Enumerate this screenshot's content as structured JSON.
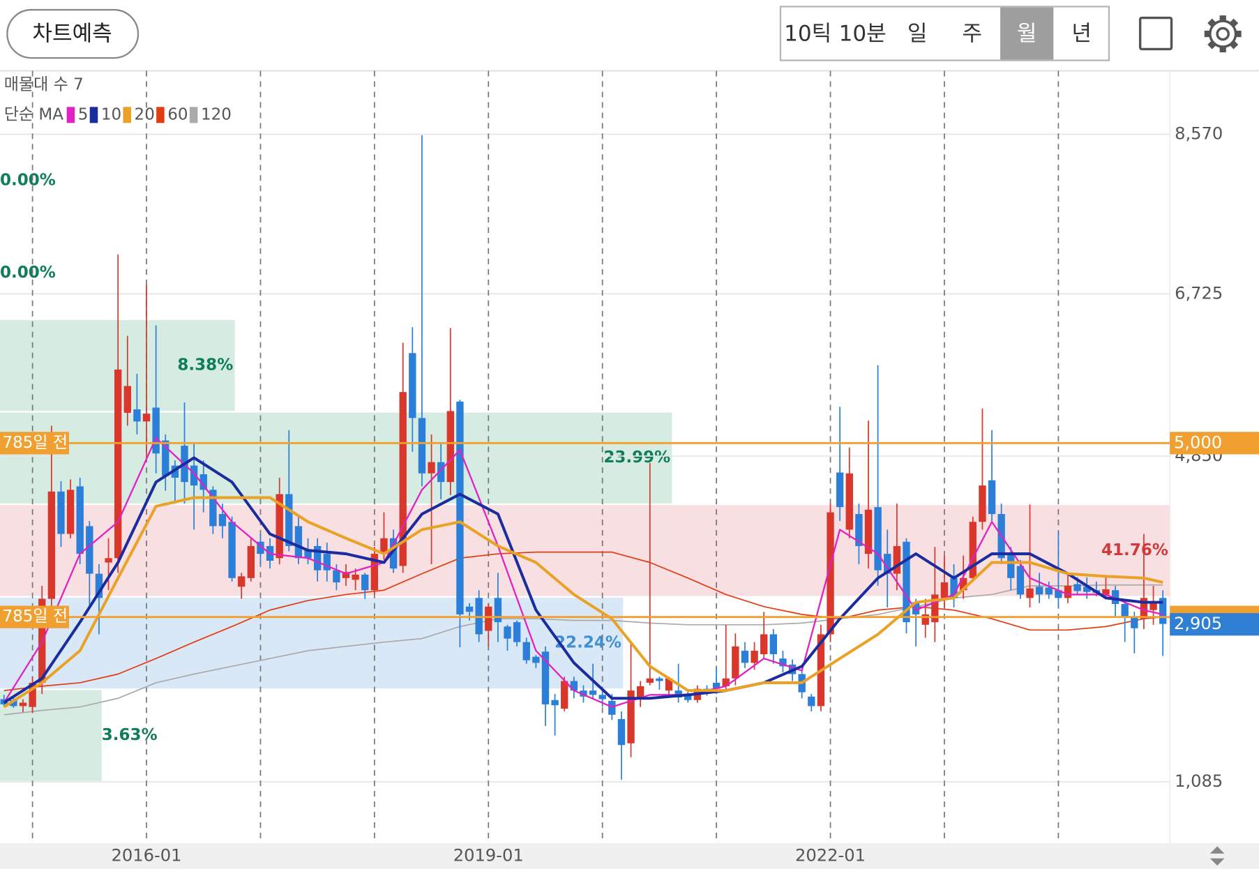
{
  "toolbar": {
    "predict_button": "차트예측",
    "periods": [
      "10틱",
      "10분",
      "일",
      "주",
      "월",
      "년"
    ],
    "selected_period": 4
  },
  "chart_data": {
    "type": "candlestick",
    "volume_profile_label": "매물대 수 7",
    "ma_label": "단순 MA",
    "categories": [
      "2014-10",
      "2014-11",
      "2014-12",
      "2015-01",
      "2015-02",
      "2015-03",
      "2015-04",
      "2015-05",
      "2015-06",
      "2015-07",
      "2015-08",
      "2015-09",
      "2015-10",
      "2015-11",
      "2015-12",
      "2016-01",
      "2016-02",
      "2016-03",
      "2016-04",
      "2016-05",
      "2016-06",
      "2016-07",
      "2016-08",
      "2016-09",
      "2016-10",
      "2016-11",
      "2016-12",
      "2017-01",
      "2017-02",
      "2017-03",
      "2017-04",
      "2017-05",
      "2017-06",
      "2017-07",
      "2017-08",
      "2017-09",
      "2017-10",
      "2017-11",
      "2017-12",
      "2018-01",
      "2018-02",
      "2018-03",
      "2018-04",
      "2018-05",
      "2018-06",
      "2018-07",
      "2018-08",
      "2018-09",
      "2018-10",
      "2018-11",
      "2018-12",
      "2019-01",
      "2019-02",
      "2019-03",
      "2019-04",
      "2019-05",
      "2019-06",
      "2019-07",
      "2019-08",
      "2019-09",
      "2019-10",
      "2019-11",
      "2019-12",
      "2020-01",
      "2020-02",
      "2020-03",
      "2020-04",
      "2020-05",
      "2020-06",
      "2020-07",
      "2020-08",
      "2020-09",
      "2020-10",
      "2020-11",
      "2020-12",
      "2021-01",
      "2021-02",
      "2021-03",
      "2021-04",
      "2021-05",
      "2021-06",
      "2021-07",
      "2021-08",
      "2021-09",
      "2021-10",
      "2021-11",
      "2021-12",
      "2022-01",
      "2022-02",
      "2022-03",
      "2022-04",
      "2022-05",
      "2022-06",
      "2022-07",
      "2022-08",
      "2022-09",
      "2022-10",
      "2022-11",
      "2022-12",
      "2023-01",
      "2023-02",
      "2023-03",
      "2023-04",
      "2023-05",
      "2023-06",
      "2023-07",
      "2023-08",
      "2023-09",
      "2023-10",
      "2023-11",
      "2023-12",
      "2024-01",
      "2024-02",
      "2024-03",
      "2024-04",
      "2024-05",
      "2024-06",
      "2024-07",
      "2024-08",
      "2024-09",
      "2024-10",
      "2024-11",
      "2024-12"
    ],
    "open": [
      2040,
      2030,
      1960,
      1950,
      2230,
      3200,
      4440,
      3950,
      4500,
      4040,
      3490,
      3620,
      3670,
      5350,
      5390,
      5250,
      5410,
      5030,
      4740,
      4970,
      4740,
      4640,
      4460,
      4180,
      4090,
      3340,
      3440,
      3860,
      3810,
      3670,
      4410,
      4040,
      3760,
      3810,
      3720,
      3530,
      3440,
      3420,
      3480,
      3300,
      3720,
      3900,
      3580,
      6040,
      5290,
      4650,
      4780,
      4550,
      5480,
      3110,
      3210,
      2830,
      3210,
      2880,
      2930,
      2700,
      2530,
      2590,
      2030,
      1930,
      2250,
      2140,
      2140,
      2090,
      2020,
      1810,
      1530,
      2050,
      2230,
      2280,
      2140,
      2140,
      2090,
      2030,
      2160,
      2230,
      2190,
      2280,
      2600,
      2460,
      2560,
      2790,
      2510,
      2440,
      2330,
      2070,
      1960,
      2790,
      4660,
      4000,
      4180,
      3720,
      4260,
      3720,
      3490,
      3860,
      3160,
      2900,
      2930,
      3210,
      3440,
      3300,
      3440,
      4090,
      4570,
      4180,
      3720,
      3580,
      3210,
      3340,
      3330,
      3300,
      3210,
      3370,
      3340,
      3300,
      3250,
      3300,
      3140,
      2990,
      2970,
      3070,
      3210
    ],
    "high": [
      2090,
      2060,
      2040,
      2300,
      3350,
      5200,
      4560,
      4580,
      4600,
      4100,
      3600,
      3900,
      7180,
      6240,
      5800,
      6830,
      6360,
      5100,
      4800,
      5470,
      5000,
      4800,
      4500,
      4300,
      4150,
      3500,
      3900,
      3950,
      3900,
      4600,
      5150,
      4150,
      3900,
      3900,
      3850,
      3600,
      3600,
      3550,
      3500,
      3800,
      4200,
      4000,
      6160,
      6340,
      8560,
      5100,
      5000,
      6330,
      5500,
      3150,
      3300,
      3150,
      3500,
      2900,
      2950,
      2750,
      2550,
      2650,
      2100,
      2300,
      2300,
      2200,
      2450,
      2150,
      2100,
      1900,
      2700,
      2250,
      4770,
      2300,
      2300,
      2450,
      2150,
      2200,
      2200,
      2400,
      2900,
      2800,
      2700,
      2700,
      3050,
      2850,
      2600,
      2500,
      2400,
      2100,
      2900,
      4300,
      5420,
      4950,
      4300,
      5260,
      5900,
      4000,
      4300,
      3900,
      3200,
      3200,
      3800,
      3700,
      3600,
      3700,
      4150,
      5400,
      5150,
      4300,
      3800,
      3650,
      4290,
      3500,
      3400,
      3980,
      3500,
      3450,
      3450,
      3400,
      3450,
      3350,
      3200,
      3050,
      3950,
      3350,
      3300
    ],
    "low": [
      1950,
      1940,
      1890,
      1880,
      2100,
      3100,
      3800,
      3900,
      3600,
      3100,
      2790,
      3300,
      3500,
      5200,
      5100,
      4800,
      4650,
      4450,
      4300,
      4300,
      4000,
      4200,
      3950,
      3900,
      3400,
      3200,
      3400,
      3600,
      3550,
      3600,
      3750,
      3600,
      3600,
      3400,
      3400,
      3300,
      3350,
      3300,
      3200,
      3250,
      3650,
      3500,
      3500,
      4900,
      4500,
      3600,
      4350,
      4400,
      2640,
      2950,
      2700,
      2650,
      2700,
      2600,
      2650,
      2450,
      2400,
      1730,
      1620,
      1900,
      2050,
      2000,
      2050,
      1950,
      1800,
      1110,
      1370,
      1950,
      2200,
      2150,
      2100,
      2000,
      2000,
      2000,
      2080,
      2100,
      2150,
      2200,
      2400,
      2380,
      2500,
      2450,
      2350,
      2250,
      2050,
      1900,
      1900,
      2700,
      4100,
      3900,
      3600,
      3550,
      3350,
      3100,
      3300,
      2800,
      2650,
      2750,
      2700,
      3100,
      3100,
      3200,
      3400,
      4000,
      4100,
      3600,
      3300,
      3200,
      3100,
      3150,
      3200,
      3100,
      3150,
      3250,
      3200,
      3230,
      3200,
      3000,
      2700,
      2570,
      2850,
      2900,
      2540
    ],
    "close": [
      1980,
      1960,
      2000,
      2230,
      3200,
      4440,
      3950,
      4460,
      3720,
      3490,
      3210,
      3670,
      5850,
      5660,
      5250,
      5340,
      4880,
      4620,
      4600,
      4550,
      4510,
      4460,
      4040,
      4040,
      3440,
      3460,
      3810,
      3720,
      3640,
      4410,
      3810,
      3670,
      3670,
      3530,
      3530,
      3390,
      3510,
      3480,
      3300,
      3720,
      3900,
      3550,
      5590,
      5290,
      4650,
      4780,
      4550,
      5370,
      3020,
      3050,
      2790,
      3110,
      2930,
      2740,
      2700,
      2490,
      2460,
      1980,
      1970,
      2250,
      2140,
      2070,
      2090,
      2040,
      1860,
      1510,
      2140,
      2190,
      2280,
      2250,
      2280,
      2060,
      2030,
      2160,
      2120,
      2160,
      2280,
      2650,
      2460,
      2600,
      2790,
      2560,
      2420,
      2330,
      2120,
      1960,
      2790,
      4200,
      4260,
      4650,
      3810,
      4230,
      3530,
      3490,
      3810,
      2930,
      3020,
      3020,
      3250,
      3390,
      3210,
      3440,
      4090,
      4510,
      4180,
      3670,
      3440,
      3250,
      3320,
      3250,
      3250,
      3210,
      3350,
      3290,
      3280,
      3270,
      3310,
      3140,
      2990,
      2860,
      3210,
      3160,
      2910
    ],
    "up_color": "#d9372c",
    "down_color": "#2b7fd8",
    "ma_series": [
      {
        "name": "5",
        "color": "#e021c4",
        "width": 2,
        "x": [
          "2014-10",
          "2015-02",
          "2015-06",
          "2015-10",
          "2016-02",
          "2016-06",
          "2016-10",
          "2017-02",
          "2017-06",
          "2017-10",
          "2018-02",
          "2018-06",
          "2018-10",
          "2019-02",
          "2019-06",
          "2019-10",
          "2020-02",
          "2020-06",
          "2020-10",
          "2021-02",
          "2021-06",
          "2021-10",
          "2022-02",
          "2022-06",
          "2022-10",
          "2023-02",
          "2023-06",
          "2023-10",
          "2024-02",
          "2024-06",
          "2024-10",
          "2024-12"
        ],
        "values": [
          2000,
          2700,
          3720,
          4090,
          5060,
          4650,
          4090,
          3720,
          3670,
          3490,
          3620,
          4460,
          4920,
          3810,
          2600,
          2140,
          1950,
          2090,
          2090,
          2190,
          2510,
          2370,
          4000,
          3720,
          3070,
          3250,
          4090,
          3440,
          3250,
          3250,
          3070,
          3020
        ]
      },
      {
        "name": "10",
        "color": "#1b2c9e",
        "width": 3.5,
        "x": [
          "2014-10",
          "2015-02",
          "2015-06",
          "2015-10",
          "2016-02",
          "2016-06",
          "2016-10",
          "2017-02",
          "2017-06",
          "2017-10",
          "2018-02",
          "2018-06",
          "2018-10",
          "2019-02",
          "2019-06",
          "2019-10",
          "2020-02",
          "2020-06",
          "2020-10",
          "2021-02",
          "2021-06",
          "2021-10",
          "2022-02",
          "2022-06",
          "2022-10",
          "2023-02",
          "2023-06",
          "2023-10",
          "2024-02",
          "2024-06",
          "2024-10",
          "2024-12"
        ],
        "values": [
          2000,
          2280,
          2930,
          3620,
          4550,
          4830,
          4550,
          3950,
          3760,
          3720,
          3620,
          4180,
          4410,
          4180,
          3070,
          2460,
          2050,
          2050,
          2090,
          2140,
          2230,
          2420,
          2970,
          3440,
          3720,
          3440,
          3720,
          3720,
          3490,
          3210,
          3160,
          3160
        ]
      },
      {
        "name": "20",
        "color": "#e9a126",
        "width": 3.5,
        "x": [
          "2014-10",
          "2015-02",
          "2015-06",
          "2015-10",
          "2016-02",
          "2016-06",
          "2016-10",
          "2017-02",
          "2017-06",
          "2017-10",
          "2018-02",
          "2018-06",
          "2018-10",
          "2019-02",
          "2019-06",
          "2019-10",
          "2020-02",
          "2020-06",
          "2020-10",
          "2021-02",
          "2021-06",
          "2021-10",
          "2022-02",
          "2022-06",
          "2022-10",
          "2023-02",
          "2023-06",
          "2023-10",
          "2024-02",
          "2024-06",
          "2024-10",
          "2024-12"
        ],
        "values": [
          1950,
          2230,
          2600,
          3440,
          4270,
          4370,
          4370,
          4370,
          4090,
          3900,
          3720,
          4000,
          4090,
          3810,
          3620,
          3250,
          2970,
          2420,
          2140,
          2140,
          2230,
          2230,
          2510,
          2790,
          3160,
          3210,
          3620,
          3620,
          3490,
          3460,
          3440,
          3390
        ]
      },
      {
        "name": "60",
        "color": "#e33b12",
        "width": 1.5,
        "x": [
          "2014-10",
          "2015-02",
          "2015-06",
          "2015-10",
          "2016-02",
          "2016-06",
          "2016-10",
          "2017-02",
          "2017-06",
          "2017-10",
          "2018-02",
          "2018-06",
          "2018-10",
          "2019-02",
          "2019-06",
          "2019-10",
          "2020-02",
          "2020-06",
          "2020-10",
          "2021-02",
          "2021-06",
          "2021-10",
          "2022-02",
          "2022-06",
          "2022-10",
          "2023-02",
          "2023-06",
          "2023-10",
          "2024-02",
          "2024-06",
          "2024-10",
          "2024-12"
        ],
        "values": [
          2140,
          2190,
          2230,
          2330,
          2510,
          2700,
          2880,
          3070,
          3180,
          3250,
          3300,
          3490,
          3670,
          3720,
          3740,
          3740,
          3740,
          3620,
          3440,
          3250,
          3110,
          3020,
          2970,
          3070,
          3110,
          3070,
          2970,
          2840,
          2840,
          2880,
          2970,
          2990
        ]
      },
      {
        "name": "120",
        "color": "#aaaaaa",
        "width": 1.5,
        "x": [
          "2014-10",
          "2015-02",
          "2015-06",
          "2015-10",
          "2016-02",
          "2016-06",
          "2016-10",
          "2017-02",
          "2017-06",
          "2017-10",
          "2018-02",
          "2018-06",
          "2018-10",
          "2019-02",
          "2019-06",
          "2019-10",
          "2020-02",
          "2020-06",
          "2020-10",
          "2021-02",
          "2021-06",
          "2021-10",
          "2022-02",
          "2022-06",
          "2022-10",
          "2023-02",
          "2023-06",
          "2023-10",
          "2024-02",
          "2024-06",
          "2024-10",
          "2024-12"
        ],
        "values": [
          1860,
          1910,
          1950,
          2050,
          2230,
          2330,
          2420,
          2510,
          2600,
          2650,
          2700,
          2740,
          2880,
          2970,
          2970,
          2950,
          2950,
          2920,
          2900,
          2900,
          2900,
          2920,
          2970,
          3020,
          3110,
          3210,
          3250,
          3350,
          3350,
          3360,
          3360,
          3360
        ]
      }
    ],
    "volume_profile": {
      "edges": [
        8570,
        7501,
        6431,
        5362,
        4293,
        3223,
        2154,
        1085
      ],
      "values": [
        0,
        0,
        8.38,
        23.99,
        41.76,
        22.24,
        3.63
      ],
      "value_labels": [
        "0.00%",
        "0.00%",
        "8.38%",
        "23.99%",
        "41.76%",
        "22.24%",
        "3.63%"
      ],
      "colors": [
        "#d6ece3",
        "#d6ece3",
        "#d6ece3",
        "#d6ece3",
        "#f8dfe1",
        "#d9e8f6",
        "#d6ece3"
      ],
      "label_colors": [
        "#0f7d5a",
        "#0f7d5a",
        "#0f7d5a",
        "#0f7d5a",
        "#d0393a",
        "#3f8fd2",
        "#0f7d5a"
      ]
    },
    "price_lines": [
      {
        "label": "785일 전",
        "value": 5000,
        "value_label": "5,000"
      },
      {
        "label": "785일 전",
        "value": 2990
      }
    ],
    "current_price": {
      "value": 2905,
      "label": "2,905"
    },
    "ylim": [
      376,
      9303
    ],
    "yticks": [
      {
        "value": 8570,
        "label": "8,570"
      },
      {
        "value": 6725,
        "label": "6,725"
      },
      {
        "value": 4850,
        "label": "4,850"
      },
      {
        "value": 1085,
        "label": "1,085"
      }
    ],
    "xgrid": [
      "2015-01",
      "2016-01",
      "2017-01",
      "2018-01",
      "2019-01",
      "2020-01",
      "2021-01",
      "2022-01",
      "2023-01",
      "2024-01"
    ],
    "xticks": [
      "2016-01",
      "2019-01",
      "2022-01"
    ],
    "grid": true
  }
}
